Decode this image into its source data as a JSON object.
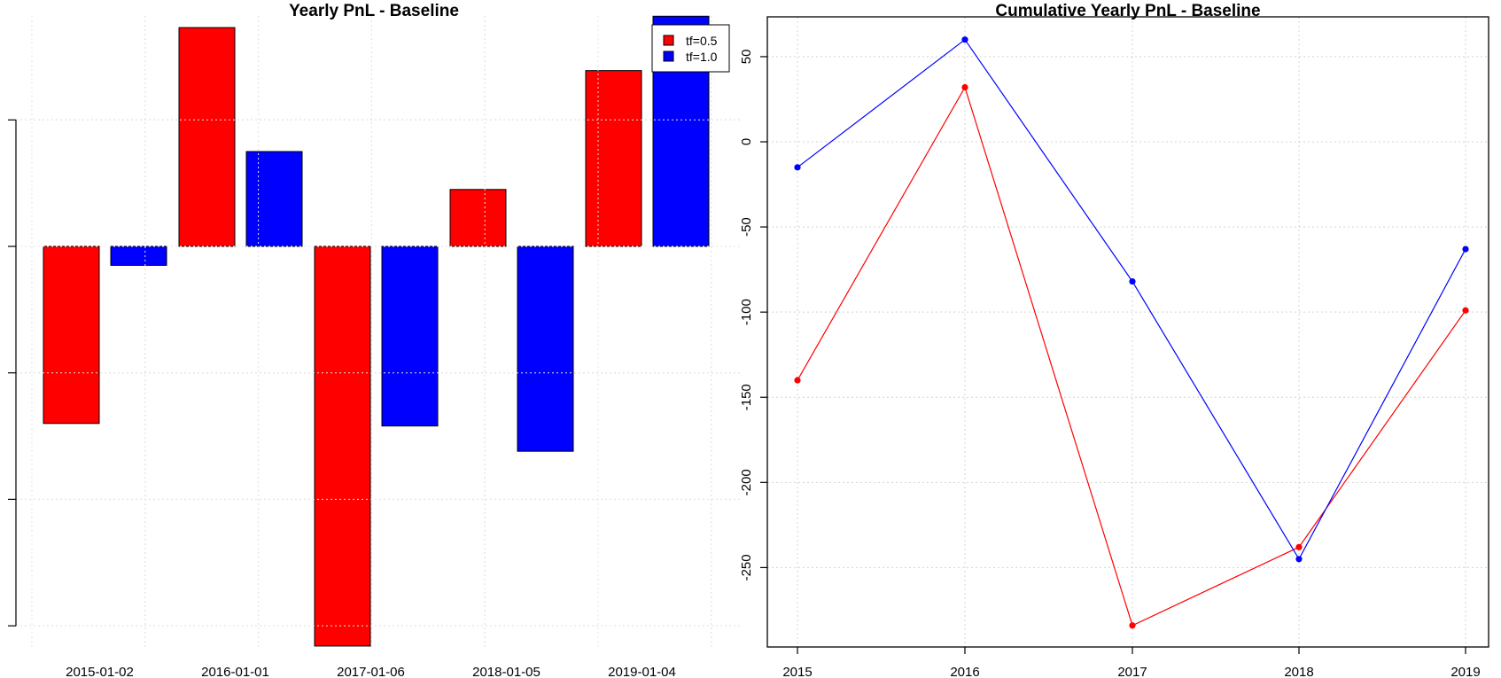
{
  "chart_data": [
    {
      "type": "bar",
      "title": "Yearly PnL - Baseline",
      "categories": [
        "2015-01-02",
        "2016-01-01",
        "2017-01-06",
        "2018-01-05",
        "2019-01-04"
      ],
      "x_tick_labels": [
        "2015-01-02",
        "2016-01-01",
        "2017-01-06",
        "2018-01-05",
        "2019-01-04"
      ],
      "y_tick_labels": [
        "",
        "",
        "",
        "",
        ""
      ],
      "ylim": [
        -317,
        185
      ],
      "y_ticks": [
        -300,
        -200,
        -100,
        0,
        100
      ],
      "grid": true,
      "legend_position": "top-right",
      "series": [
        {
          "name": "tf=0.5",
          "color": "#ff0000",
          "values": [
            -140,
            173,
            -316,
            45,
            139
          ]
        },
        {
          "name": "tf=1.0",
          "color": "#0000ff",
          "values": [
            -15,
            75,
            -142,
            -162,
            182
          ]
        }
      ]
    },
    {
      "type": "line",
      "title": "Cumulative Yearly PnL - Baseline",
      "x": [
        2015,
        2016,
        2017,
        2018,
        2019
      ],
      "x_tick_labels": [
        "2015",
        "2016",
        "2017",
        "2018",
        "2019"
      ],
      "y_tick_labels": [
        "-250",
        "-200",
        "-150",
        "-100",
        "-50",
        "0",
        "50"
      ],
      "y_ticks": [
        -250,
        -200,
        -150,
        -100,
        -50,
        0,
        50
      ],
      "ylim": [
        -296,
        74
      ],
      "grid": true,
      "series": [
        {
          "name": "tf=0.5",
          "color": "#ff0000",
          "values": [
            -140,
            32,
            -284,
            -238,
            -99
          ]
        },
        {
          "name": "tf=1.0",
          "color": "#0000ff",
          "values": [
            -15,
            60,
            -82,
            -245,
            -63
          ]
        }
      ]
    }
  ]
}
